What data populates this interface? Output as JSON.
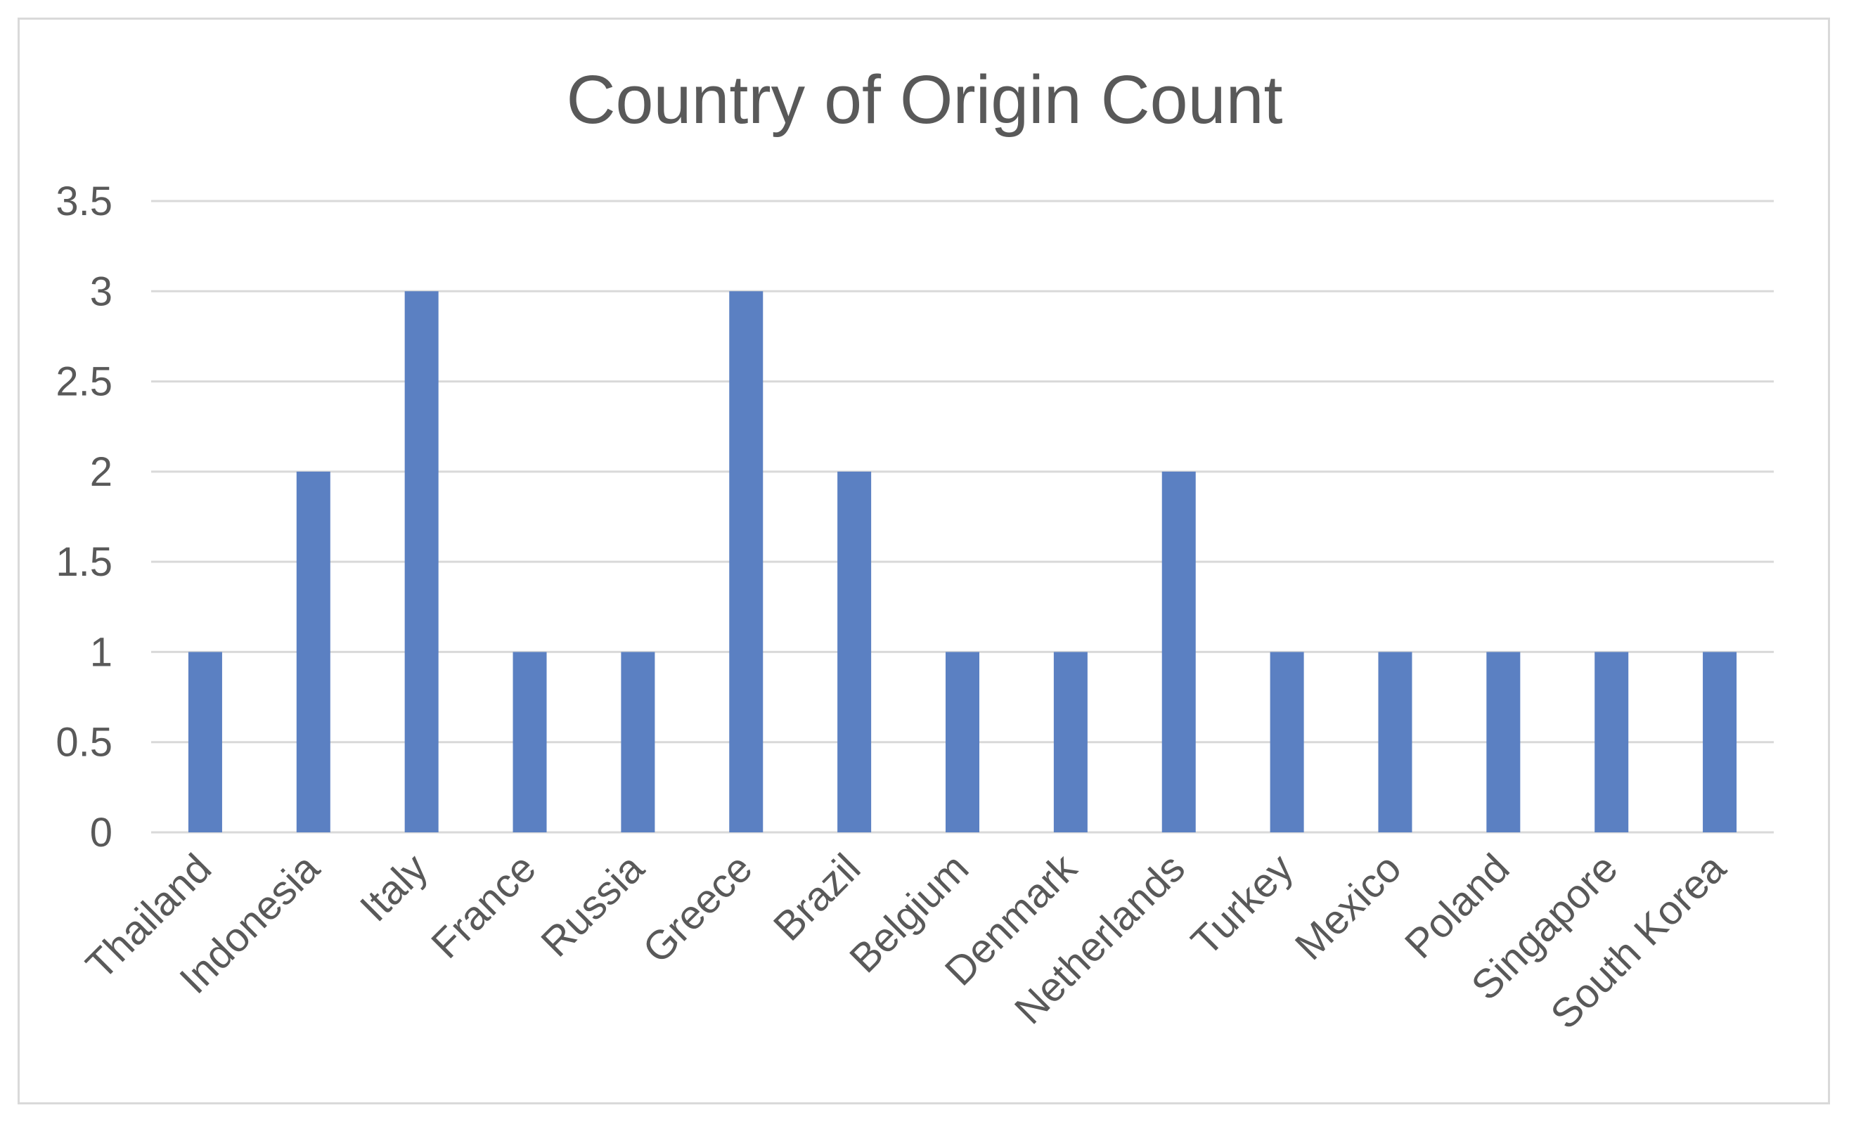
{
  "colors": {
    "bar": "#5b80c2",
    "grid": "#d9d9d9",
    "text": "#595959",
    "frame": "#d9d9d9"
  },
  "chart_data": {
    "type": "bar",
    "title": "Country of Origin Count",
    "xlabel": "",
    "ylabel": "",
    "ylim": [
      0,
      3.5
    ],
    "grid": true,
    "legend": "none",
    "yticks": [
      "0",
      "0.5",
      "1",
      "1.5",
      "2",
      "2.5",
      "3",
      "3.5"
    ],
    "categories": [
      "Thailand",
      "Indonesia",
      "Italy",
      "France",
      "Russia",
      "Greece",
      "Brazil",
      "Belgium",
      "Denmark",
      "Netherlands",
      "Turkey",
      "Mexico",
      "Poland",
      "Singapore",
      "South Korea"
    ],
    "values": [
      1,
      2,
      3,
      1,
      1,
      3,
      2,
      1,
      1,
      2,
      1,
      1,
      1,
      1,
      1
    ]
  }
}
